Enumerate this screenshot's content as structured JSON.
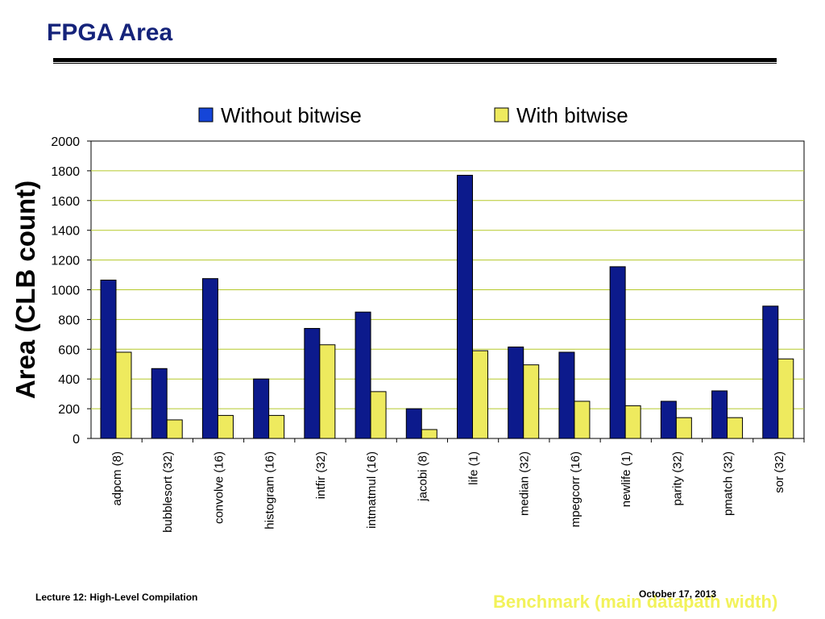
{
  "slide": {
    "title": "FPGA Area",
    "footer_left": "Lecture 12: High-Level Compilation",
    "footer_date": "October 17, 2013"
  },
  "colors": {
    "title": "#15237a",
    "without": "#0c1a8c",
    "with": "#eeea5e",
    "grid": "#b5c92a",
    "xlabel": "#f2f25a"
  },
  "chart_data": {
    "type": "bar",
    "categories": [
      "adpcm (8)",
      "bubblesort (32)",
      "convolve (16)",
      "histogram (16)",
      "intfir (32)",
      "intmatmul (16)",
      "jacobi (8)",
      "life (1)",
      "median (32)",
      "mpegcorr (16)",
      "newlife (1)",
      "parity (32)",
      "pmatch (32)",
      "sor (32)"
    ],
    "series": [
      {
        "name": "Without bitwise",
        "values": [
          1065,
          470,
          1075,
          400,
          740,
          850,
          200,
          1770,
          615,
          580,
          1155,
          250,
          320,
          890
        ]
      },
      {
        "name": "With bitwise",
        "values": [
          580,
          125,
          155,
          155,
          630,
          315,
          60,
          590,
          495,
          250,
          220,
          140,
          140,
          535
        ]
      }
    ],
    "ylabel": "Area (CLB count)",
    "xlabel": "Benchmark (main datapath width)",
    "ylim": [
      0,
      2000
    ],
    "yticks": [
      0,
      200,
      400,
      600,
      800,
      1000,
      1200,
      1400,
      1600,
      1800,
      2000
    ],
    "grid": true,
    "legend": "top"
  }
}
